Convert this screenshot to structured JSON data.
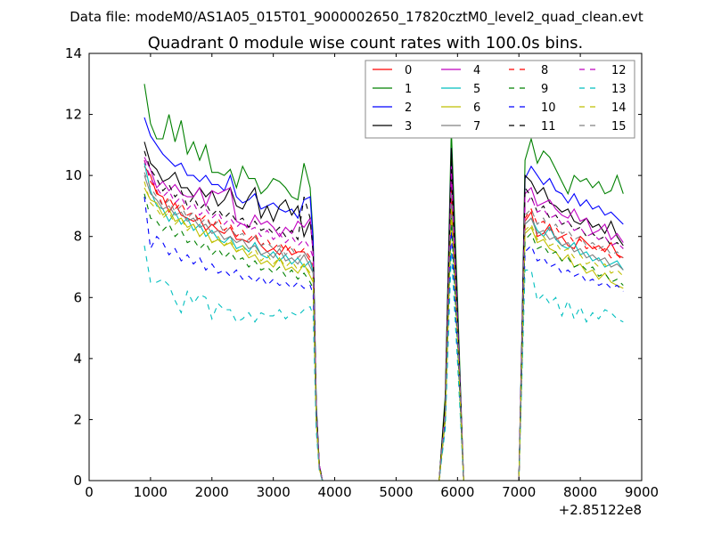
{
  "header": {
    "data_file": "Data file: modeM0/AS1A05_015T01_9000002650_17820cztM0_level2_quad_clean.evt"
  },
  "chart_data": {
    "type": "line",
    "title": "Quadrant 0 module wise count rates with 100.0s bins.",
    "xlabel": "",
    "ylabel": "",
    "x_offset_label": "+2.85122e8",
    "xlim": [
      0,
      9000
    ],
    "ylim": [
      0,
      14
    ],
    "x_ticks": [
      0,
      1000,
      2000,
      3000,
      4000,
      5000,
      6000,
      7000,
      8000,
      9000
    ],
    "y_ticks": [
      0,
      2,
      4,
      6,
      8,
      10,
      12,
      14
    ],
    "legend_position": "top-right",
    "x": [
      900,
      1000,
      1100,
      1200,
      1300,
      1400,
      1500,
      1600,
      1700,
      1800,
      1900,
      2000,
      2100,
      2200,
      2300,
      2400,
      2500,
      2600,
      2700,
      2800,
      2900,
      3000,
      3100,
      3200,
      3300,
      3400,
      3500,
      3600,
      3650,
      3700,
      3750,
      3800,
      4000,
      5000,
      5700,
      5800,
      5900,
      6000,
      6100,
      6150,
      6200,
      7000,
      7050,
      7100,
      7200,
      7300,
      7400,
      7500,
      7600,
      7700,
      7800,
      7900,
      8000,
      8100,
      8200,
      8300,
      8400,
      8500,
      8600,
      8700
    ],
    "series": [
      {
        "name": "0",
        "color": "#ff0000",
        "dash": false,
        "values": [
          10.3,
          10.0,
          9.4,
          9.3,
          8.8,
          9.1,
          8.7,
          8.6,
          8.5,
          8.6,
          8.2,
          8.4,
          8.2,
          8.1,
          8.3,
          7.9,
          7.9,
          7.8,
          8.0,
          7.7,
          7.5,
          7.6,
          7.4,
          7.7,
          7.4,
          7.5,
          7.5,
          7.2,
          7.0,
          2.0,
          0.4,
          0,
          0,
          0,
          0,
          2.0,
          9.4,
          5.0,
          0,
          0,
          0,
          0,
          4.0,
          8.5,
          8.8,
          8.0,
          8.1,
          8.4,
          7.9,
          8.0,
          7.7,
          7.6,
          8.0,
          7.8,
          7.6,
          7.7,
          7.5,
          7.8,
          7.4,
          7.3
        ]
      },
      {
        "name": "1",
        "color": "#008000",
        "dash": false,
        "values": [
          13.0,
          11.7,
          11.2,
          11.2,
          12.0,
          11.1,
          11.8,
          10.7,
          11.1,
          10.5,
          11.0,
          10.1,
          10.1,
          10.0,
          10.2,
          9.6,
          10.3,
          9.9,
          9.9,
          9.4,
          9.6,
          9.9,
          9.8,
          9.6,
          9.3,
          9.2,
          10.4,
          9.6,
          8.0,
          2.5,
          0.5,
          0,
          0,
          0,
          0,
          2.8,
          11.5,
          6.0,
          0,
          0,
          0,
          0,
          5.0,
          10.5,
          11.2,
          10.4,
          10.8,
          10.6,
          10.2,
          9.8,
          9.4,
          10.0,
          9.8,
          9.9,
          9.6,
          9.8,
          9.4,
          9.5,
          10.0,
          9.4
        ]
      },
      {
        "name": "2",
        "color": "#0000ff",
        "dash": false,
        "values": [
          11.9,
          11.3,
          11.0,
          10.7,
          10.5,
          10.3,
          10.4,
          10.0,
          10.0,
          9.8,
          10.0,
          9.7,
          9.7,
          9.5,
          10.0,
          9.3,
          9.1,
          9.2,
          9.4,
          8.9,
          9.0,
          9.1,
          8.9,
          8.8,
          8.9,
          8.6,
          9.2,
          9.3,
          7.8,
          2.4,
          0.5,
          0,
          0,
          0,
          0,
          2.5,
          10.9,
          5.5,
          0,
          0,
          0,
          0,
          4.8,
          9.9,
          10.3,
          10.0,
          9.7,
          9.9,
          9.5,
          9.4,
          9.1,
          9.4,
          9.0,
          9.2,
          8.9,
          9.0,
          8.7,
          8.8,
          8.6,
          8.4
        ]
      },
      {
        "name": "3",
        "color": "#000000",
        "dash": false,
        "values": [
          11.1,
          10.4,
          10.2,
          9.8,
          9.9,
          10.1,
          9.6,
          9.6,
          9.3,
          9.6,
          9.3,
          9.5,
          9.0,
          9.2,
          9.6,
          9.0,
          8.9,
          9.3,
          9.6,
          8.6,
          9.0,
          8.5,
          9.0,
          9.2,
          8.7,
          9.0,
          8.0,
          8.5,
          7.5,
          2.3,
          0.5,
          0,
          0,
          0,
          0,
          2.6,
          10.9,
          5.4,
          0,
          0,
          0,
          0,
          4.7,
          10.0,
          9.8,
          9.4,
          9.6,
          9.1,
          9.0,
          8.8,
          8.9,
          8.5,
          8.4,
          8.6,
          8.3,
          8.4,
          8.1,
          8.5,
          8.0,
          7.7
        ]
      },
      {
        "name": "4",
        "color": "#bf00bf",
        "dash": false,
        "values": [
          10.6,
          10.2,
          9.6,
          9.8,
          9.5,
          9.7,
          9.4,
          9.3,
          9.3,
          9.6,
          9.0,
          9.5,
          9.4,
          9.5,
          9.6,
          8.5,
          8.4,
          8.3,
          8.7,
          8.4,
          8.5,
          8.3,
          8.0,
          8.3,
          8.1,
          8.5,
          8.3,
          8.6,
          7.4,
          2.2,
          0.5,
          0,
          0,
          0,
          0,
          2.3,
          10.3,
          5.2,
          0,
          0,
          0,
          0,
          4.5,
          9.4,
          9.6,
          9.0,
          9.1,
          9.2,
          8.9,
          8.7,
          8.6,
          8.9,
          8.5,
          8.6,
          8.1,
          8.2,
          8.4,
          7.9,
          8.1,
          7.8
        ]
      },
      {
        "name": "5",
        "color": "#00bfbf",
        "dash": false,
        "values": [
          10.4,
          9.5,
          9.0,
          8.9,
          8.5,
          8.8,
          8.4,
          8.6,
          8.2,
          8.4,
          8.0,
          8.2,
          7.9,
          7.8,
          8.0,
          7.6,
          7.7,
          7.5,
          7.8,
          7.4,
          7.3,
          7.5,
          7.2,
          7.4,
          7.1,
          7.3,
          7.0,
          7.2,
          6.8,
          2.0,
          0.4,
          0,
          0,
          0,
          0,
          2.1,
          9.0,
          4.8,
          0,
          0,
          0,
          0,
          4.2,
          8.4,
          8.6,
          8.2,
          8.0,
          8.3,
          7.9,
          7.7,
          7.6,
          7.8,
          7.4,
          7.5,
          7.2,
          7.3,
          7.0,
          7.1,
          7.2,
          6.9
        ]
      },
      {
        "name": "6",
        "color": "#bfbf00",
        "dash": false,
        "values": [
          9.6,
          9.2,
          9.1,
          8.7,
          8.9,
          8.5,
          8.6,
          8.3,
          8.4,
          8.0,
          8.2,
          7.8,
          7.9,
          7.7,
          7.8,
          7.5,
          7.6,
          7.3,
          7.4,
          7.1,
          7.2,
          7.0,
          7.3,
          6.9,
          7.0,
          6.8,
          7.1,
          6.7,
          6.5,
          1.9,
          0.4,
          0,
          0,
          0,
          0,
          2.0,
          8.8,
          4.6,
          0,
          0,
          0,
          0,
          4.0,
          8.1,
          8.3,
          7.8,
          7.9,
          7.6,
          7.5,
          7.2,
          7.4,
          7.0,
          7.1,
          6.8,
          6.9,
          6.6,
          6.8,
          6.5,
          6.4,
          6.3
        ]
      },
      {
        "name": "7",
        "color": "#808080",
        "dash": false,
        "values": [
          10.0,
          9.4,
          9.2,
          8.9,
          9.0,
          8.7,
          8.8,
          8.5,
          8.6,
          8.3,
          8.4,
          8.1,
          8.2,
          7.9,
          8.0,
          7.8,
          7.9,
          7.6,
          7.7,
          7.4,
          7.5,
          7.3,
          7.6,
          7.2,
          7.3,
          7.1,
          7.4,
          7.0,
          6.8,
          2.0,
          0.4,
          0,
          0,
          0,
          0,
          2.1,
          9.2,
          4.8,
          0,
          0,
          0,
          0,
          4.2,
          8.4,
          8.6,
          8.1,
          8.2,
          7.9,
          8.0,
          7.7,
          7.8,
          7.5,
          7.6,
          7.3,
          7.4,
          7.2,
          7.3,
          7.0,
          7.1,
          6.9
        ]
      },
      {
        "name": "8",
        "color": "#ff0000",
        "dash": true,
        "values": [
          10.5,
          9.8,
          9.5,
          9.0,
          9.3,
          8.9,
          9.1,
          8.7,
          8.8,
          8.5,
          8.7,
          8.3,
          8.6,
          8.2,
          8.4,
          8.0,
          8.2,
          7.9,
          8.1,
          7.7,
          7.9,
          7.6,
          7.8,
          7.5,
          7.7,
          7.4,
          7.6,
          7.3,
          7.0,
          2.1,
          0.4,
          0,
          0,
          0,
          0,
          2.2,
          9.6,
          5.0,
          0,
          0,
          0,
          0,
          4.3,
          8.6,
          8.9,
          8.4,
          8.5,
          8.2,
          8.3,
          8.0,
          8.1,
          7.8,
          7.9,
          7.6,
          7.7,
          7.5,
          7.6,
          7.3,
          7.4,
          7.2
        ]
      },
      {
        "name": "9",
        "color": "#008000",
        "dash": true,
        "values": [
          9.4,
          8.6,
          8.5,
          8.2,
          8.4,
          8.0,
          8.2,
          7.8,
          7.9,
          7.6,
          7.8,
          7.4,
          7.6,
          7.3,
          7.5,
          7.2,
          7.3,
          7.0,
          7.2,
          6.9,
          7.0,
          6.8,
          7.0,
          6.7,
          6.9,
          6.6,
          6.8,
          6.5,
          6.3,
          1.9,
          0.4,
          0,
          0,
          0,
          0,
          2.0,
          8.6,
          4.5,
          0,
          0,
          0,
          0,
          3.9,
          7.9,
          8.1,
          7.6,
          7.7,
          7.4,
          7.5,
          7.2,
          7.3,
          7.0,
          7.1,
          6.9,
          7.0,
          6.7,
          6.8,
          6.5,
          6.6,
          6.4
        ]
      },
      {
        "name": "10",
        "color": "#0000ff",
        "dash": true,
        "values": [
          9.3,
          7.6,
          8.0,
          7.8,
          7.4,
          7.6,
          7.2,
          7.4,
          7.1,
          7.3,
          6.9,
          7.1,
          6.8,
          6.9,
          6.7,
          6.9,
          6.6,
          6.7,
          6.5,
          6.7,
          6.4,
          6.6,
          6.4,
          6.5,
          6.3,
          6.5,
          6.3,
          6.4,
          6.1,
          1.8,
          0.4,
          0,
          0,
          0,
          0,
          1.9,
          8.2,
          4.3,
          0,
          0,
          0,
          0,
          3.7,
          7.5,
          7.7,
          7.2,
          7.3,
          7.0,
          7.1,
          6.8,
          6.9,
          6.7,
          6.8,
          6.5,
          6.6,
          6.4,
          6.5,
          6.3,
          6.4,
          6.2
        ]
      },
      {
        "name": "11",
        "color": "#000000",
        "dash": true,
        "values": [
          10.8,
          10.2,
          9.9,
          9.5,
          9.7,
          9.3,
          9.5,
          9.0,
          9.3,
          8.9,
          9.1,
          8.7,
          8.9,
          8.6,
          8.8,
          8.5,
          8.6,
          8.3,
          8.5,
          8.2,
          8.3,
          8.1,
          8.3,
          8.0,
          8.2,
          7.9,
          9.3,
          8.6,
          7.5,
          2.3,
          0.5,
          0,
          0,
          0,
          0,
          2.4,
          10.2,
          5.3,
          0,
          0,
          0,
          0,
          4.6,
          9.6,
          9.3,
          8.8,
          9.0,
          8.6,
          8.7,
          8.4,
          8.5,
          8.2,
          8.3,
          8.0,
          8.1,
          7.9,
          8.0,
          7.7,
          7.8,
          7.6
        ]
      },
      {
        "name": "12",
        "color": "#bf00bf",
        "dash": true,
        "values": [
          10.5,
          9.9,
          9.6,
          9.3,
          9.5,
          9.1,
          9.3,
          8.9,
          9.1,
          8.7,
          8.9,
          8.6,
          8.8,
          8.4,
          8.6,
          8.3,
          8.5,
          8.2,
          8.3,
          8.0,
          8.2,
          7.9,
          8.1,
          7.8,
          8.0,
          7.7,
          7.9,
          7.6,
          7.3,
          2.2,
          0.5,
          0,
          0,
          0,
          0,
          2.3,
          10.0,
          5.2,
          0,
          0,
          0,
          0,
          4.5,
          9.0,
          9.3,
          8.8,
          8.9,
          8.6,
          8.7,
          8.4,
          8.5,
          8.2,
          8.3,
          8.0,
          8.1,
          7.9,
          8.0,
          7.7,
          7.8,
          7.6
        ]
      },
      {
        "name": "13",
        "color": "#00bfbf",
        "dash": true,
        "values": [
          7.7,
          6.5,
          6.5,
          6.6,
          6.4,
          5.9,
          5.5,
          6.2,
          5.8,
          6.1,
          6.0,
          5.3,
          5.8,
          5.6,
          5.6,
          5.2,
          5.3,
          5.5,
          5.2,
          5.5,
          5.4,
          5.4,
          5.6,
          5.3,
          5.5,
          5.4,
          5.6,
          5.7,
          5.4,
          1.6,
          0.3,
          0,
          0,
          0,
          0,
          1.7,
          7.5,
          3.9,
          0,
          0,
          0,
          0,
          3.4,
          6.9,
          6.9,
          5.9,
          6.1,
          5.8,
          6.0,
          5.4,
          5.9,
          5.3,
          5.7,
          5.2,
          5.5,
          5.3,
          5.6,
          5.5,
          5.3,
          5.2
        ]
      },
      {
        "name": "14",
        "color": "#bfbf00",
        "dash": true,
        "values": [
          9.8,
          9.1,
          8.9,
          8.6,
          8.8,
          8.4,
          8.6,
          8.2,
          8.4,
          8.0,
          8.2,
          7.8,
          8.0,
          7.7,
          7.9,
          7.5,
          7.7,
          7.4,
          7.6,
          7.2,
          7.4,
          7.1,
          7.3,
          7.0,
          7.2,
          6.9,
          7.1,
          6.8,
          6.6,
          2.0,
          0.4,
          0,
          0,
          0,
          0,
          2.1,
          9.0,
          4.7,
          0,
          0,
          0,
          0,
          4.1,
          8.2,
          8.4,
          7.9,
          8.0,
          7.7,
          7.8,
          7.5,
          7.6,
          7.3,
          7.4,
          7.1,
          7.2,
          7.0,
          7.1,
          6.8,
          6.9,
          6.7
        ]
      },
      {
        "name": "15",
        "color": "#808080",
        "dash": true,
        "values": [
          10.1,
          9.6,
          9.3,
          9.0,
          9.2,
          8.8,
          9.0,
          8.6,
          8.8,
          8.4,
          8.6,
          8.3,
          8.5,
          8.1,
          8.3,
          8.0,
          8.1,
          7.8,
          8.0,
          7.7,
          7.8,
          7.6,
          7.7,
          7.4,
          7.6,
          7.3,
          7.5,
          7.2,
          7.0,
          2.1,
          0.4,
          0,
          0,
          0,
          0,
          2.2,
          9.5,
          4.9,
          0,
          0,
          0,
          0,
          4.3,
          8.7,
          8.9,
          8.4,
          8.6,
          8.2,
          8.4,
          8.1,
          8.2,
          7.9,
          8.0,
          7.7,
          7.8,
          7.6,
          7.7,
          7.4,
          7.5,
          7.3
        ]
      }
    ]
  }
}
